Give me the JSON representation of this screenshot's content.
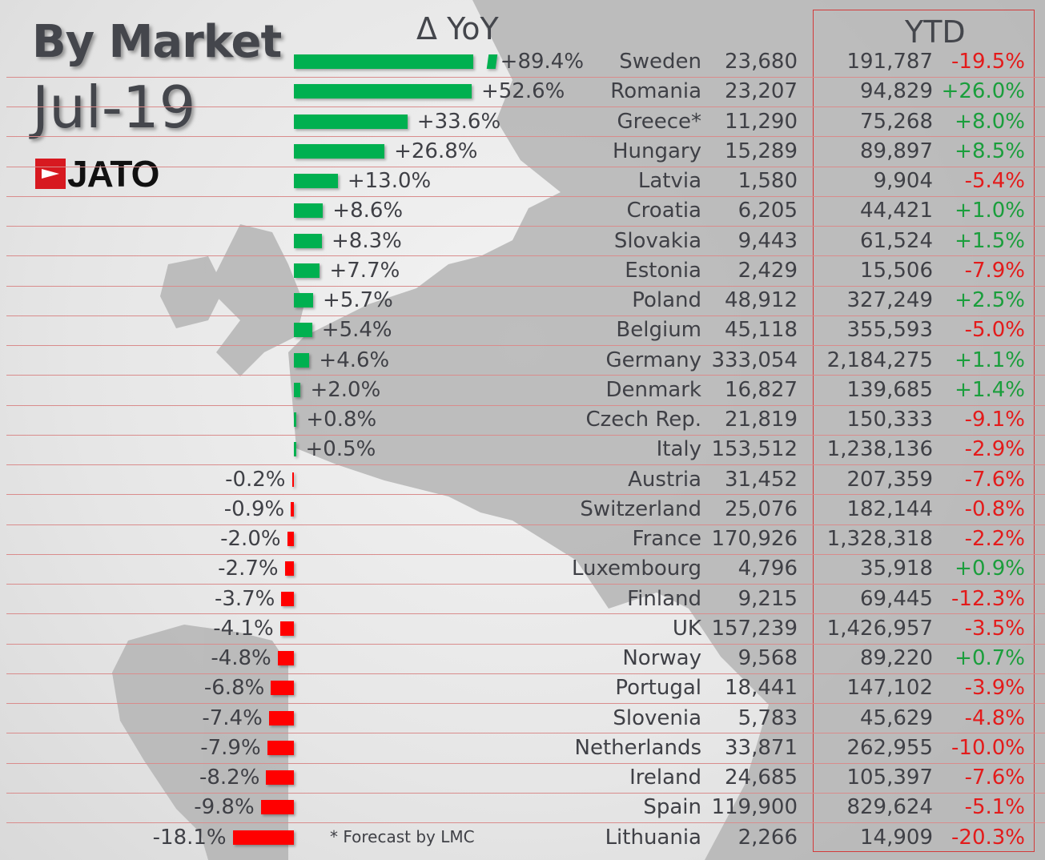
{
  "title": "By Market",
  "period": "Jul-19",
  "logo_text": "JATO",
  "footnote": "* Forecast by LMC",
  "colors": {
    "positive": "#00b050",
    "negative": "#ff0000",
    "ytd_positive": "#1a9e3c",
    "ytd_negative": "#e31b1b"
  },
  "chart_data": {
    "type": "bar",
    "orientation": "horizontal",
    "title": "By Market",
    "yoy_header": "Δ YoY",
    "ytd_header": "YTD",
    "axis_break": true,
    "rows": [
      {
        "country": "Sweden",
        "units": "23,680",
        "yoy": 89.4,
        "yoy_label": "+89.4%",
        "ytd": "191,787",
        "ytd_pct": "-19.5%"
      },
      {
        "country": "Romania",
        "units": "23,207",
        "yoy": 52.6,
        "yoy_label": "+52.6%",
        "ytd": "94,829",
        "ytd_pct": "+26.0%"
      },
      {
        "country": "Greece*",
        "units": "11,290",
        "yoy": 33.6,
        "yoy_label": "+33.6%",
        "ytd": "75,268",
        "ytd_pct": "+8.0%"
      },
      {
        "country": "Hungary",
        "units": "15,289",
        "yoy": 26.8,
        "yoy_label": "+26.8%",
        "ytd": "89,897",
        "ytd_pct": "+8.5%"
      },
      {
        "country": "Latvia",
        "units": "1,580",
        "yoy": 13.0,
        "yoy_label": "+13.0%",
        "ytd": "9,904",
        "ytd_pct": "-5.4%"
      },
      {
        "country": "Croatia",
        "units": "6,205",
        "yoy": 8.6,
        "yoy_label": "+8.6%",
        "ytd": "44,421",
        "ytd_pct": "+1.0%"
      },
      {
        "country": "Slovakia",
        "units": "9,443",
        "yoy": 8.3,
        "yoy_label": "+8.3%",
        "ytd": "61,524",
        "ytd_pct": "+1.5%"
      },
      {
        "country": "Estonia",
        "units": "2,429",
        "yoy": 7.7,
        "yoy_label": "+7.7%",
        "ytd": "15,506",
        "ytd_pct": "-7.9%"
      },
      {
        "country": "Poland",
        "units": "48,912",
        "yoy": 5.7,
        "yoy_label": "+5.7%",
        "ytd": "327,249",
        "ytd_pct": "+2.5%"
      },
      {
        "country": "Belgium",
        "units": "45,118",
        "yoy": 5.4,
        "yoy_label": "+5.4%",
        "ytd": "355,593",
        "ytd_pct": "-5.0%"
      },
      {
        "country": "Germany",
        "units": "333,054",
        "yoy": 4.6,
        "yoy_label": "+4.6%",
        "ytd": "2,184,275",
        "ytd_pct": "+1.1%"
      },
      {
        "country": "Denmark",
        "units": "16,827",
        "yoy": 2.0,
        "yoy_label": "+2.0%",
        "ytd": "139,685",
        "ytd_pct": "+1.4%"
      },
      {
        "country": "Czech Rep.",
        "units": "21,819",
        "yoy": 0.8,
        "yoy_label": "+0.8%",
        "ytd": "150,333",
        "ytd_pct": "-9.1%"
      },
      {
        "country": "Italy",
        "units": "153,512",
        "yoy": 0.5,
        "yoy_label": "+0.5%",
        "ytd": "1,238,136",
        "ytd_pct": "-2.9%"
      },
      {
        "country": "Austria",
        "units": "31,452",
        "yoy": -0.2,
        "yoy_label": "-0.2%",
        "ytd": "207,359",
        "ytd_pct": "-7.6%"
      },
      {
        "country": "Switzerland",
        "units": "25,076",
        "yoy": -0.9,
        "yoy_label": "-0.9%",
        "ytd": "182,144",
        "ytd_pct": "-0.8%"
      },
      {
        "country": "France",
        "units": "170,926",
        "yoy": -2.0,
        "yoy_label": "-2.0%",
        "ytd": "1,328,318",
        "ytd_pct": "-2.2%"
      },
      {
        "country": "Luxembourg",
        "units": "4,796",
        "yoy": -2.7,
        "yoy_label": "-2.7%",
        "ytd": "35,918",
        "ytd_pct": "+0.9%"
      },
      {
        "country": "Finland",
        "units": "9,215",
        "yoy": -3.7,
        "yoy_label": "-3.7%",
        "ytd": "69,445",
        "ytd_pct": "-12.3%"
      },
      {
        "country": "UK",
        "units": "157,239",
        "yoy": -4.1,
        "yoy_label": "-4.1%",
        "ytd": "1,426,957",
        "ytd_pct": "-3.5%"
      },
      {
        "country": "Norway",
        "units": "9,568",
        "yoy": -4.8,
        "yoy_label": "-4.8%",
        "ytd": "89,220",
        "ytd_pct": "+0.7%"
      },
      {
        "country": "Portugal",
        "units": "18,441",
        "yoy": -6.8,
        "yoy_label": "-6.8%",
        "ytd": "147,102",
        "ytd_pct": "-3.9%"
      },
      {
        "country": "Slovenia",
        "units": "5,783",
        "yoy": -7.4,
        "yoy_label": "-7.4%",
        "ytd": "45,629",
        "ytd_pct": "-4.8%"
      },
      {
        "country": "Netherlands",
        "units": "33,871",
        "yoy": -7.9,
        "yoy_label": "-7.9%",
        "ytd": "262,955",
        "ytd_pct": "-10.0%"
      },
      {
        "country": "Ireland",
        "units": "24,685",
        "yoy": -8.2,
        "yoy_label": "-8.2%",
        "ytd": "105,397",
        "ytd_pct": "-7.6%"
      },
      {
        "country": "Spain",
        "units": "119,900",
        "yoy": -9.8,
        "yoy_label": "-9.8%",
        "ytd": "829,624",
        "ytd_pct": "-5.1%"
      },
      {
        "country": "Lithuania",
        "units": "2,266",
        "yoy": -18.1,
        "yoy_label": "-18.1%",
        "ytd": "14,909",
        "ytd_pct": "-20.3%"
      }
    ]
  }
}
